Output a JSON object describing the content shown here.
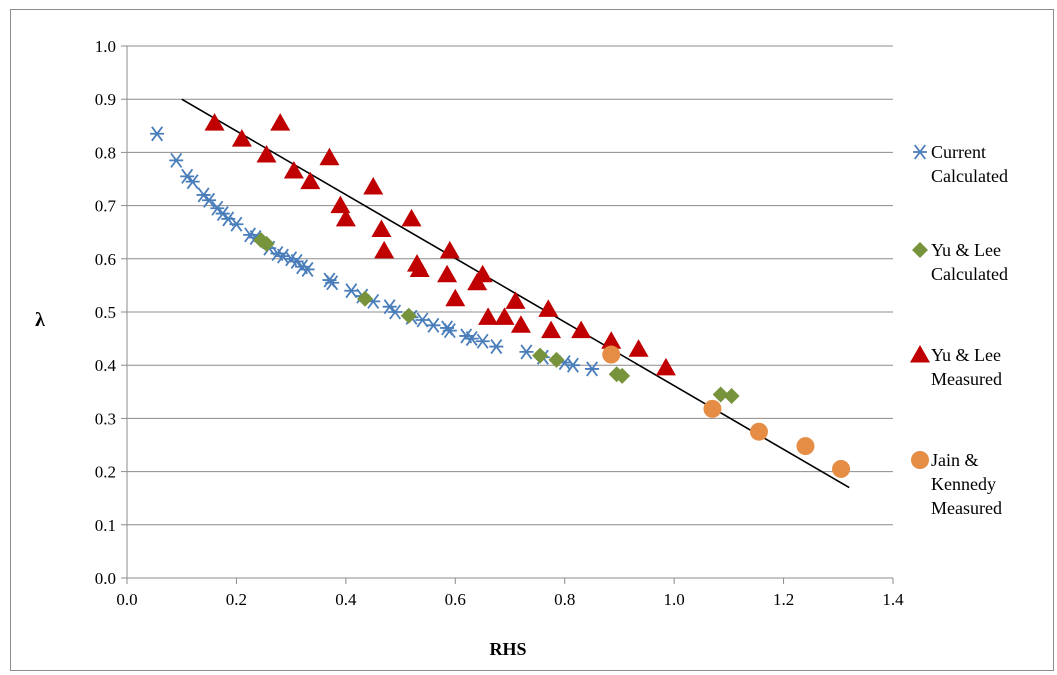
{
  "chart_data": {
    "type": "scatter",
    "xlabel": "RHS",
    "ylabel": "λ",
    "xlim": [
      0,
      1.4
    ],
    "ylim": [
      0,
      1.0
    ],
    "xticks": [
      "0.0",
      "0.2",
      "0.4",
      "0.6",
      "0.8",
      "1.0",
      "1.2",
      "1.4"
    ],
    "yticks": [
      "0.0",
      "0.1",
      "0.2",
      "0.3",
      "0.4",
      "0.5",
      "0.6",
      "0.7",
      "0.8",
      "0.9",
      "1.0"
    ],
    "grid": "horizontal",
    "legend_position": "right",
    "series": [
      {
        "name": [
          "Current",
          "Calculated"
        ],
        "marker": "asterisk",
        "color": "#4a7ebb",
        "points": [
          [
            0.055,
            0.835
          ],
          [
            0.09,
            0.785
          ],
          [
            0.11,
            0.755
          ],
          [
            0.12,
            0.745
          ],
          [
            0.14,
            0.72
          ],
          [
            0.15,
            0.71
          ],
          [
            0.165,
            0.695
          ],
          [
            0.175,
            0.685
          ],
          [
            0.185,
            0.675
          ],
          [
            0.2,
            0.665
          ],
          [
            0.225,
            0.645
          ],
          [
            0.235,
            0.64
          ],
          [
            0.26,
            0.62
          ],
          [
            0.275,
            0.61
          ],
          [
            0.285,
            0.605
          ],
          [
            0.3,
            0.6
          ],
          [
            0.31,
            0.595
          ],
          [
            0.32,
            0.585
          ],
          [
            0.33,
            0.58
          ],
          [
            0.37,
            0.56
          ],
          [
            0.375,
            0.555
          ],
          [
            0.41,
            0.54
          ],
          [
            0.43,
            0.53
          ],
          [
            0.45,
            0.52
          ],
          [
            0.48,
            0.51
          ],
          [
            0.49,
            0.5
          ],
          [
            0.52,
            0.49
          ],
          [
            0.54,
            0.485
          ],
          [
            0.56,
            0.475
          ],
          [
            0.585,
            0.47
          ],
          [
            0.59,
            0.465
          ],
          [
            0.62,
            0.455
          ],
          [
            0.63,
            0.45
          ],
          [
            0.65,
            0.445
          ],
          [
            0.675,
            0.435
          ],
          [
            0.73,
            0.425
          ],
          [
            0.76,
            0.415
          ],
          [
            0.8,
            0.405
          ],
          [
            0.815,
            0.4
          ],
          [
            0.85,
            0.393
          ]
        ]
      },
      {
        "name": [
          "Yu & Lee",
          "Calculated"
        ],
        "marker": "diamond",
        "color": "#77933c",
        "points": [
          [
            0.245,
            0.635
          ],
          [
            0.255,
            0.628
          ],
          [
            0.435,
            0.525
          ],
          [
            0.515,
            0.493
          ],
          [
            0.755,
            0.418
          ],
          [
            0.785,
            0.41
          ],
          [
            0.895,
            0.383
          ],
          [
            0.905,
            0.38
          ],
          [
            1.085,
            0.345
          ],
          [
            1.105,
            0.342
          ]
        ]
      },
      {
        "name": [
          "Yu & Lee",
          "Measured"
        ],
        "marker": "triangle",
        "color": "#c00000",
        "points": [
          [
            0.16,
            0.855
          ],
          [
            0.21,
            0.825
          ],
          [
            0.255,
            0.795
          ],
          [
            0.28,
            0.855
          ],
          [
            0.305,
            0.765
          ],
          [
            0.335,
            0.745
          ],
          [
            0.37,
            0.79
          ],
          [
            0.39,
            0.7
          ],
          [
            0.4,
            0.675
          ],
          [
            0.45,
            0.735
          ],
          [
            0.465,
            0.655
          ],
          [
            0.47,
            0.615
          ],
          [
            0.52,
            0.675
          ],
          [
            0.53,
            0.59
          ],
          [
            0.535,
            0.58
          ],
          [
            0.585,
            0.57
          ],
          [
            0.59,
            0.615
          ],
          [
            0.6,
            0.525
          ],
          [
            0.64,
            0.555
          ],
          [
            0.65,
            0.57
          ],
          [
            0.66,
            0.49
          ],
          [
            0.69,
            0.49
          ],
          [
            0.71,
            0.52
          ],
          [
            0.72,
            0.475
          ],
          [
            0.77,
            0.505
          ],
          [
            0.775,
            0.465
          ],
          [
            0.83,
            0.465
          ],
          [
            0.885,
            0.445
          ],
          [
            0.935,
            0.43
          ],
          [
            0.985,
            0.395
          ]
        ]
      },
      {
        "name": [
          "Jain &",
          "Kennedy",
          "Measured"
        ],
        "marker": "circle",
        "color": "#e58c45",
        "points": [
          [
            0.885,
            0.42
          ],
          [
            1.07,
            0.318
          ],
          [
            1.155,
            0.275
          ],
          [
            1.24,
            0.248
          ],
          [
            1.305,
            0.205
          ]
        ]
      }
    ],
    "trendline": {
      "from": [
        0.1,
        0.9
      ],
      "to": [
        1.32,
        0.17
      ],
      "color": "#000000"
    }
  }
}
